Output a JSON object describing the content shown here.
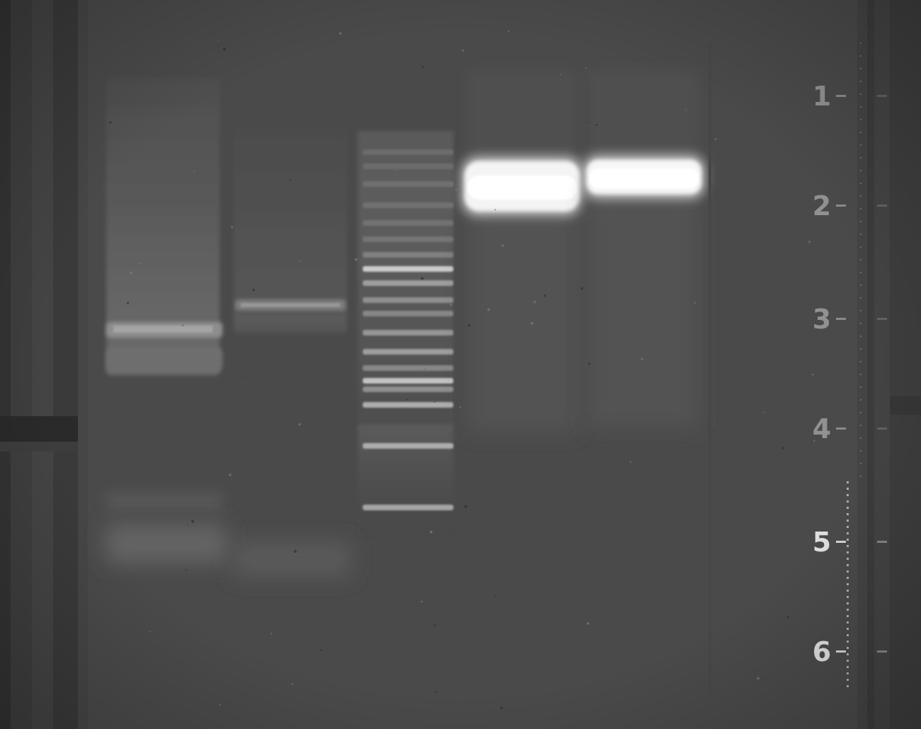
{
  "image": {
    "subject": "agarose-gel-electrophoresis",
    "lanes": [
      {
        "name": "lane-1",
        "kind": "smear-sample"
      },
      {
        "name": "lane-2",
        "kind": "faint-sample"
      },
      {
        "name": "lane-3",
        "kind": "dna-ladder"
      },
      {
        "name": "lane-4",
        "kind": "strong-band"
      },
      {
        "name": "lane-5",
        "kind": "strong-band"
      },
      {
        "name": "lane-6",
        "kind": "empty"
      }
    ],
    "ruler": {
      "labels": [
        "1",
        "2",
        "3",
        "4",
        "5",
        "6"
      ]
    },
    "colors": {
      "gel_background": "#4a4a4a",
      "band_bright": "#ffffff",
      "band_faint": "#8a8a8a",
      "frame_dark": "#2e2e2e"
    }
  }
}
